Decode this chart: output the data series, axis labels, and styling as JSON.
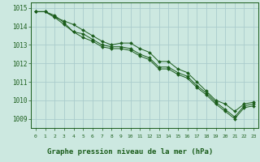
{
  "title": "Graphe pression niveau de la mer (hPa)",
  "background_color": "#cce8e0",
  "grid_color": "#aacccc",
  "line_color": "#1a5c1a",
  "marker_color": "#1a5c1a",
  "x_ticks": [
    0,
    1,
    2,
    3,
    4,
    5,
    6,
    7,
    8,
    9,
    10,
    11,
    12,
    13,
    14,
    15,
    16,
    17,
    18,
    19,
    20,
    21,
    22,
    23
  ],
  "ylim": [
    1008.5,
    1015.3
  ],
  "yticks": [
    1009,
    1010,
    1011,
    1012,
    1013,
    1014,
    1015
  ],
  "series": [
    [
      1014.8,
      1014.8,
      1014.5,
      1014.3,
      1014.1,
      1013.8,
      1013.5,
      1013.2,
      1013.0,
      1013.1,
      1013.1,
      1012.8,
      1012.6,
      1012.1,
      1012.1,
      1011.7,
      1011.5,
      1011.0,
      1010.5,
      1010.0,
      1009.8,
      1009.4,
      1009.8,
      1009.9
    ],
    [
      1014.8,
      1014.8,
      1014.6,
      1014.2,
      1013.7,
      1013.6,
      1013.3,
      1013.0,
      1012.9,
      1012.9,
      1012.8,
      1012.5,
      1012.3,
      1011.8,
      1011.8,
      1011.5,
      1011.3,
      1010.8,
      1010.4,
      1009.9,
      1009.5,
      1009.1,
      1009.7,
      1009.8
    ],
    [
      1014.8,
      1014.8,
      1014.5,
      1014.1,
      1013.7,
      1013.4,
      1013.2,
      1012.9,
      1012.8,
      1012.8,
      1012.7,
      1012.4,
      1012.2,
      1011.7,
      1011.7,
      1011.4,
      1011.2,
      1010.7,
      1010.3,
      1009.8,
      1009.4,
      1009.0,
      1009.6,
      1009.7
    ]
  ]
}
